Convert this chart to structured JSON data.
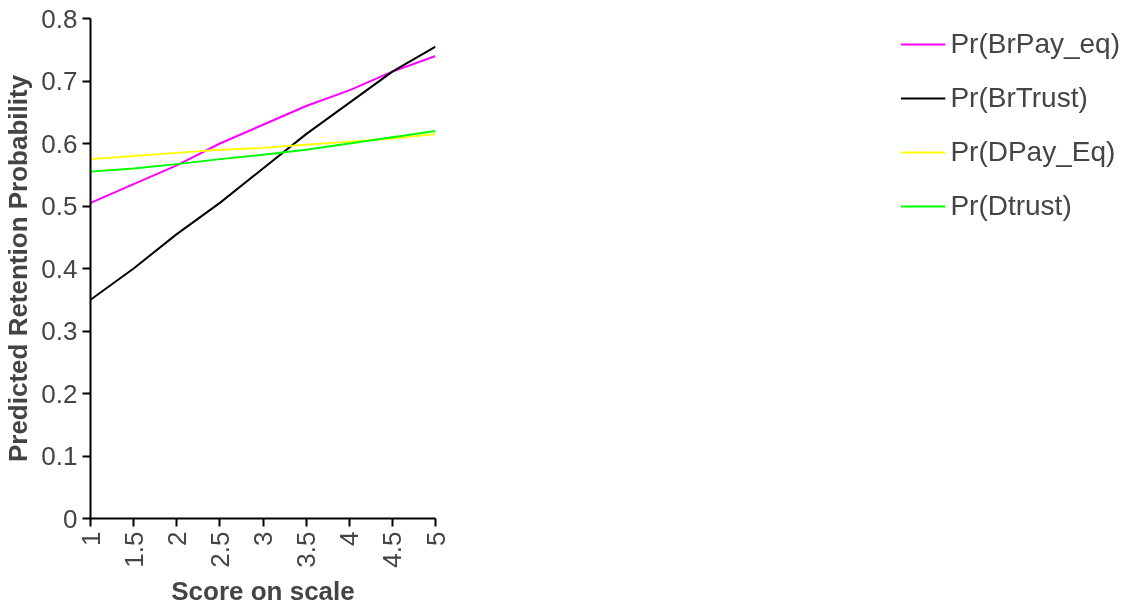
{
  "chart_data": {
    "type": "line",
    "xlabel": "Score on scale",
    "ylabel": "Predicted Retention Probability",
    "x": [
      1,
      1.5,
      2,
      2.5,
      3,
      3.5,
      4,
      4.5,
      5
    ],
    "series": [
      {
        "name": "Pr(BrPay_eq)",
        "color": "#ff00ff",
        "values": [
          0.505,
          0.535,
          0.565,
          0.6,
          0.63,
          0.66,
          0.685,
          0.715,
          0.74
        ]
      },
      {
        "name": "Pr(BrTrust)",
        "color": "#000000",
        "values": [
          0.35,
          0.4,
          0.455,
          0.505,
          0.56,
          0.615,
          0.665,
          0.715,
          0.755
        ]
      },
      {
        "name": "Pr(DPay_Eq)",
        "color": "#ffff00",
        "values": [
          0.575,
          0.58,
          0.585,
          0.59,
          0.593,
          0.598,
          0.603,
          0.608,
          0.615
        ]
      },
      {
        "name": "Pr(Dtrust)",
        "color": "#00ff00",
        "values": [
          0.555,
          0.56,
          0.567,
          0.575,
          0.582,
          0.59,
          0.6,
          0.61,
          0.62
        ]
      }
    ],
    "xlim": [
      1,
      5
    ],
    "xticks": [
      1,
      1.5,
      2,
      2.5,
      3,
      3.5,
      4,
      4.5,
      5
    ],
    "ylim": [
      0,
      0.8
    ],
    "yticks": [
      0,
      0.1,
      0.2,
      0.3,
      0.4,
      0.5,
      0.6,
      0.7,
      0.8
    ],
    "grid": false,
    "legend": "right",
    "marker": "none",
    "line_style": "solid"
  }
}
